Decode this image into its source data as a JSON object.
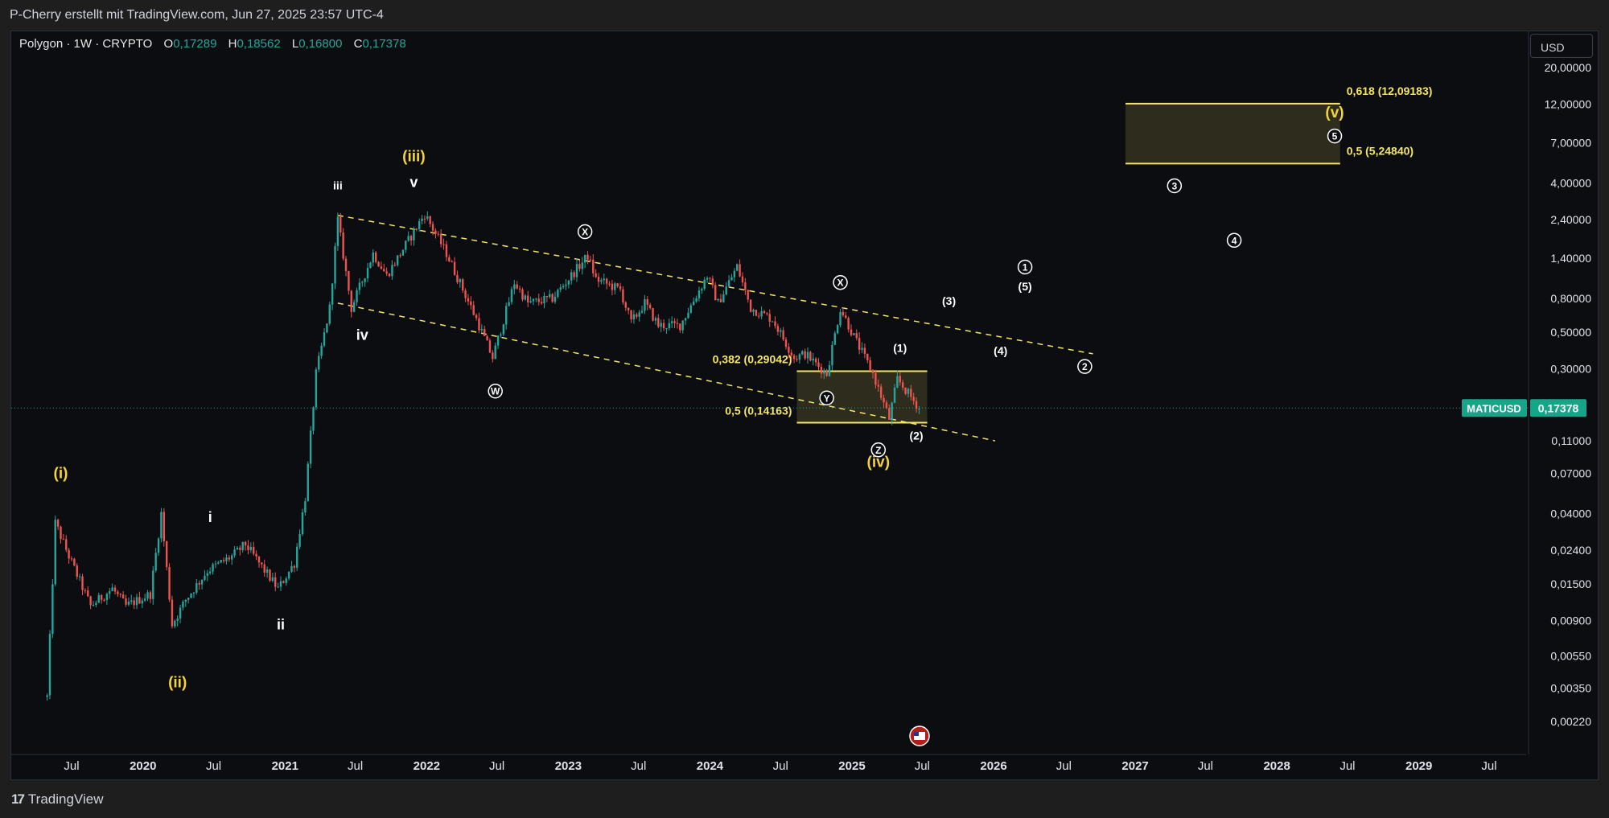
{
  "header": {
    "credit": "P-Cherry erstellt mit TradingView.com, Jun 27, 2025 23:57 UTC-4"
  },
  "legend": {
    "symbol": "Polygon · 1W · CRYPTO",
    "o_label": "O",
    "o_value": "0,17289",
    "h_label": "H",
    "h_value": "0,18562",
    "l_label": "L",
    "l_value": "0,16800",
    "c_label": "C",
    "c_value": "0,17378"
  },
  "toolbar": {
    "currency": "USD"
  },
  "footer": {
    "logo": "17",
    "brand": "TradingView"
  },
  "colors": {
    "background": "#0b0d11",
    "up": "#26a69a",
    "down": "#ef5350",
    "fib": "#f5e663",
    "wave": "#ffffff",
    "wave_major": "#f5d33b",
    "price_tag": "#17a589"
  },
  "chart_data": {
    "type": "candlestick",
    "scale": "log",
    "y_ticks": [
      "20,00000",
      "12,00000",
      "7,00000",
      "4,00000",
      "2,40000",
      "1,40000",
      "0,80000",
      "0,50000",
      "0,30000",
      "0,11000",
      "0,07000",
      "0,04000",
      "0,02400",
      "0,01500",
      "0,00900",
      "0,00550",
      "0,00350",
      "0,00220"
    ],
    "x_ticks": [
      "Jul",
      "2020",
      "Jul",
      "2021",
      "Jul",
      "2022",
      "Jul",
      "2023",
      "Jul",
      "2024",
      "Jul",
      "2025",
      "Jul",
      "2026",
      "Jul",
      "2027",
      "Jul",
      "2028",
      "Jul",
      "2029",
      "Jul"
    ],
    "current_price": {
      "symbol": "MATICUSD",
      "value": "0,17378"
    },
    "price_path": [
      [
        "2019-04-29",
        0.0031
      ],
      [
        "2019-05-20",
        0.035
      ],
      [
        "2019-06-24",
        0.022
      ],
      [
        "2019-08-19",
        0.011
      ],
      [
        "2019-10-14",
        0.014
      ],
      [
        "2019-11-18",
        0.011
      ],
      [
        "2020-01-20",
        0.013
      ],
      [
        "2020-02-17",
        0.04
      ],
      [
        "2020-03-16",
        0.0085
      ],
      [
        "2020-04-20",
        0.012
      ],
      [
        "2020-06-15",
        0.018
      ],
      [
        "2020-08-17",
        0.022
      ],
      [
        "2020-09-21",
        0.026
      ],
      [
        "2020-11-02",
        0.019
      ],
      [
        "2020-12-14",
        0.014
      ],
      [
        "2021-01-25",
        0.02
      ],
      [
        "2021-02-22",
        0.05
      ],
      [
        "2021-03-22",
        0.28
      ],
      [
        "2021-04-26",
        0.7
      ],
      [
        "2021-05-17",
        2.4
      ],
      [
        "2021-06-21",
        0.7
      ],
      [
        "2021-08-16",
        1.5
      ],
      [
        "2021-09-20",
        1.1
      ],
      [
        "2021-12-27",
        2.6
      ],
      [
        "2022-02-21",
        1.5
      ],
      [
        "2022-05-09",
        0.6
      ],
      [
        "2022-06-20",
        0.35
      ],
      [
        "2022-08-15",
        1.0
      ],
      [
        "2022-09-19",
        0.75
      ],
      [
        "2022-11-21",
        0.8
      ],
      [
        "2023-02-20",
        1.45
      ],
      [
        "2023-03-13",
        1.05
      ],
      [
        "2023-05-15",
        0.9
      ],
      [
        "2023-06-12",
        0.57
      ],
      [
        "2023-07-17",
        0.75
      ],
      [
        "2023-08-21",
        0.55
      ],
      [
        "2023-10-16",
        0.55
      ],
      [
        "2023-12-25",
        1.1
      ],
      [
        "2024-01-22",
        0.75
      ],
      [
        "2024-03-11",
        1.25
      ],
      [
        "2024-04-15",
        0.7
      ],
      [
        "2024-06-10",
        0.6
      ],
      [
        "2024-08-05",
        0.35
      ],
      [
        "2024-09-02",
        0.37
      ],
      [
        "2024-10-28",
        0.28
      ],
      [
        "2024-12-02",
        0.7
      ],
      [
        "2025-01-06",
        0.47
      ],
      [
        "2025-02-24",
        0.28
      ],
      [
        "2025-04-07",
        0.15
      ],
      [
        "2025-04-28",
        0.26
      ],
      [
        "2025-06-23",
        0.17378
      ]
    ],
    "channel": {
      "upper": [
        [
          "2021-05-17",
          2.55
        ],
        [
          "2026-09-14",
          0.37
        ]
      ],
      "lower": [
        [
          "2021-05-17",
          0.75
        ],
        [
          "2026-01-05",
          0.11
        ]
      ]
    },
    "fib_zones": [
      {
        "top_label": "0,382 (0,29042)",
        "top": 0.29042,
        "bottom_label": "0,5 (0,14163)",
        "bottom": 0.14163,
        "from": "2024-08-12",
        "to": "2025-07-14"
      },
      {
        "top_label": "0,618 (12,09183)",
        "top": 12.09183,
        "bottom_label": "0,5 (5,24840)",
        "bottom": 5.2484,
        "from": "2026-12-07",
        "to": "2028-06-12"
      }
    ],
    "wave_labels": [
      {
        "text": "(i)",
        "date": "2019-06-03",
        "price": 0.07,
        "major": true
      },
      {
        "text": "(ii)",
        "date": "2020-03-30",
        "price": 0.0038,
        "major": true
      },
      {
        "text": "i",
        "date": "2020-06-22",
        "price": 0.038,
        "major": false
      },
      {
        "text": "ii",
        "date": "2020-12-21",
        "price": 0.0085,
        "major": false
      },
      {
        "text": "iii",
        "date": "2021-05-17",
        "price": 3.85,
        "major": false
      },
      {
        "text": "iv",
        "date": "2021-07-19",
        "price": 0.48,
        "major": false
      },
      {
        "text": "(iii)",
        "date": "2021-11-29",
        "price": 5.8,
        "major": true
      },
      {
        "text": "v",
        "date": "2021-11-29",
        "price": 4.05,
        "major": false
      },
      {
        "text": "W",
        "date": "2022-06-27",
        "price": 0.22,
        "major": false,
        "circled": true
      },
      {
        "text": "X",
        "date": "2023-02-13",
        "price": 2.03,
        "major": false,
        "circled": true
      },
      {
        "text": "X",
        "date": "2024-12-02",
        "price": 1.0,
        "major": false,
        "circled": true
      },
      {
        "text": "Y",
        "date": "2024-10-28",
        "price": 0.2,
        "major": false,
        "circled": true
      },
      {
        "text": "Z",
        "date": "2025-03-10",
        "price": 0.097,
        "major": false,
        "circled": true
      },
      {
        "text": "(iv)",
        "date": "2025-03-10",
        "price": 0.082,
        "major": true
      },
      {
        "text": "(1)",
        "date": "2025-05-05",
        "price": 0.4,
        "major": false
      },
      {
        "text": "(2)",
        "date": "2025-06-16",
        "price": 0.118,
        "major": false
      },
      {
        "text": "(3)",
        "date": "2025-09-08",
        "price": 0.77,
        "major": false
      },
      {
        "text": "(4)",
        "date": "2026-01-19",
        "price": 0.385,
        "major": false
      },
      {
        "text": "(5)",
        "date": "2026-03-23",
        "price": 0.945,
        "major": false
      },
      {
        "text": "1",
        "date": "2026-03-23",
        "price": 1.24,
        "major": false,
        "circled": true
      },
      {
        "text": "2",
        "date": "2026-08-24",
        "price": 0.31,
        "major": false,
        "circled": true
      },
      {
        "text": "3",
        "date": "2027-04-12",
        "price": 3.85,
        "major": false,
        "circled": true
      },
      {
        "text": "4",
        "date": "2027-09-13",
        "price": 1.8,
        "major": false,
        "circled": true
      },
      {
        "text": "5",
        "date": "2028-05-29",
        "price": 7.7,
        "major": false,
        "circled": true
      },
      {
        "text": "(v)",
        "date": "2028-05-29",
        "price": 10.7,
        "major": true
      }
    ]
  }
}
